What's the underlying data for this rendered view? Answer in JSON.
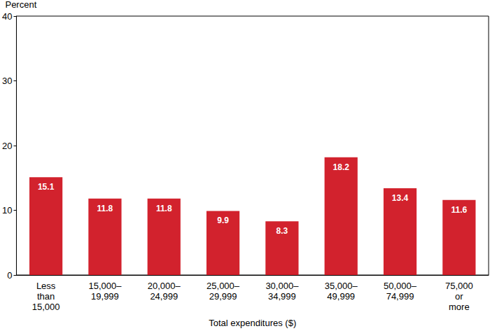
{
  "chart_data": {
    "type": "bar",
    "x_label": "Total expenditures ($)",
    "y_label": "Percent",
    "categories": [
      "Less\nthan\n15,000",
      "15,000–\n19,999",
      "20,000–\n24,999",
      "25,000–\n29,999",
      "30,000–\n34,999",
      "35,000–\n49,999",
      "50,000–\n74,999",
      "75,000\nor\nmore"
    ],
    "values": [
      15.1,
      11.8,
      11.8,
      9.9,
      8.3,
      18.2,
      13.4,
      11.6
    ],
    "color": "#d2222d",
    "ylim": [
      0,
      40
    ],
    "yticks": [
      0,
      10,
      20,
      30,
      40
    ],
    "grid": false,
    "data_labels": true
  }
}
